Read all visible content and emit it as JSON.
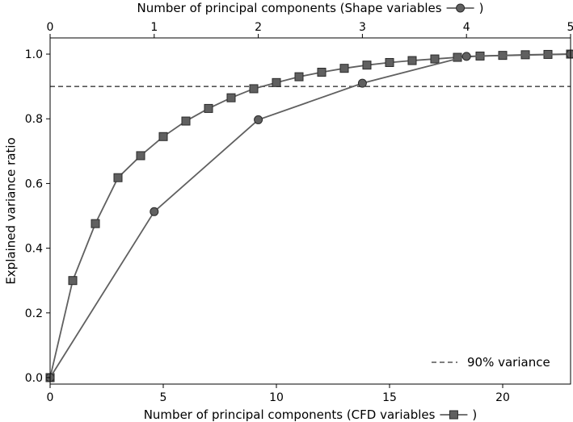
{
  "chart_data": {
    "type": "line",
    "title": "",
    "ylabel": "Explained variance ratio",
    "ylim": [
      -0.02,
      1.05
    ],
    "yticks": [
      "0.0",
      "0.2",
      "0.4",
      "0.6",
      "0.8",
      "1.0"
    ],
    "bottom_axis": {
      "label": "Number of principal components (CFD variables",
      "label_suffix": ")",
      "xlim": [
        0,
        23
      ],
      "ticks": [
        "0",
        "5",
        "10",
        "15",
        "20"
      ]
    },
    "top_axis": {
      "label": "Number of principal components (Shape variables",
      "label_suffix": ")",
      "xlim": [
        0,
        5
      ],
      "ticks": [
        "0",
        "1",
        "2",
        "3",
        "4",
        "5"
      ]
    },
    "series": [
      {
        "axis": "bottom",
        "marker": "square",
        "x": [
          0,
          1,
          2,
          3,
          4,
          5,
          6,
          7,
          8,
          9,
          10,
          11,
          12,
          13,
          14,
          15,
          16,
          17,
          18,
          19,
          20,
          21,
          22,
          23
        ],
        "y": [
          0.0,
          0.3,
          0.476,
          0.618,
          0.686,
          0.745,
          0.793,
          0.832,
          0.865,
          0.893,
          0.912,
          0.93,
          0.944,
          0.956,
          0.966,
          0.974,
          0.98,
          0.985,
          0.99,
          0.994,
          0.996,
          0.998,
          0.999,
          1.0
        ]
      },
      {
        "axis": "top",
        "marker": "circle",
        "x": [
          0,
          1,
          2,
          3,
          4,
          5
        ],
        "y": [
          0.0,
          0.513,
          0.797,
          0.91,
          0.993,
          1.0
        ]
      }
    ],
    "reference_line": {
      "y": 0.9,
      "style": "dashed",
      "legend_label": "90% variance"
    },
    "legend_placement": "lower-right",
    "grid": false,
    "colors": {
      "line": "#606060",
      "marker_fill": "#606060",
      "reference": "#555555"
    }
  }
}
